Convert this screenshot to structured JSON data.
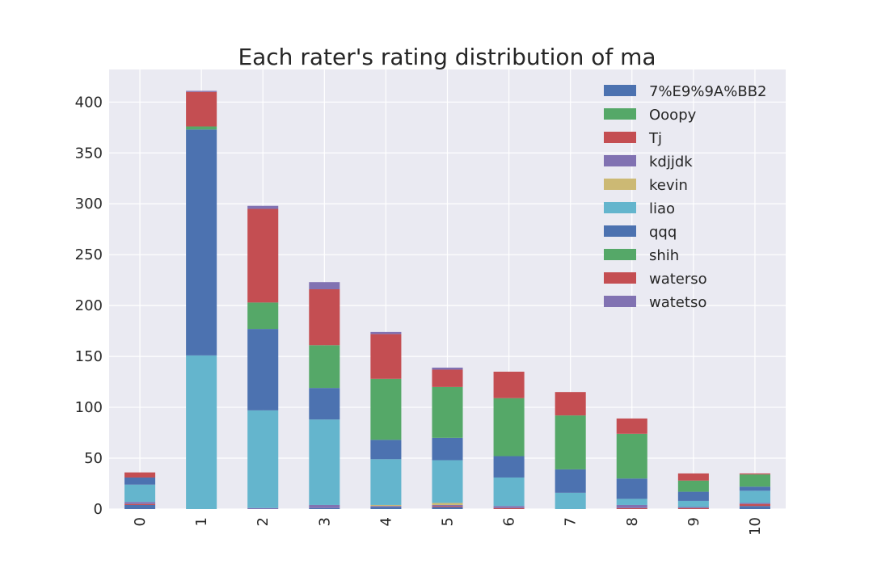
{
  "chart_data": {
    "type": "bar",
    "stacked": true,
    "title": "Each rater's rating distribution of ma",
    "xlabel": "",
    "ylabel": "",
    "categories": [
      "0",
      "1",
      "2",
      "3",
      "4",
      "5",
      "6",
      "7",
      "8",
      "9",
      "10"
    ],
    "ylim": [
      0,
      432
    ],
    "yticks": [
      0,
      50,
      100,
      150,
      200,
      250,
      300,
      350,
      400
    ],
    "grid": true,
    "legend_position": "top-right",
    "series": [
      {
        "name": "7%E9%9A%BB2",
        "color": "#4C72B0",
        "values": [
          4,
          0,
          0,
          1,
          2,
          2,
          0,
          0,
          0,
          0,
          3
        ]
      },
      {
        "name": "Ooopy",
        "color": "#55A868",
        "values": [
          0,
          0,
          0,
          0,
          0,
          0,
          0,
          0,
          0,
          0,
          0
        ]
      },
      {
        "name": "Tj",
        "color": "#C44E52",
        "values": [
          1,
          0,
          0,
          0,
          0,
          1,
          1,
          0,
          1,
          1,
          2
        ]
      },
      {
        "name": "kdjjdk",
        "color": "#8172B2",
        "values": [
          2,
          0,
          1,
          3,
          1,
          1,
          2,
          0,
          3,
          1,
          1
        ]
      },
      {
        "name": "kevin",
        "color": "#CCB974",
        "values": [
          0,
          0,
          0,
          0,
          1,
          2,
          0,
          0,
          0,
          0,
          0
        ]
      },
      {
        "name": "liao",
        "color": "#64B5CD",
        "values": [
          17,
          151,
          96,
          84,
          45,
          42,
          28,
          16,
          6,
          6,
          12
        ]
      },
      {
        "name": "qqq",
        "color": "#4C72B0",
        "values": [
          7,
          222,
          80,
          31,
          19,
          22,
          21,
          23,
          20,
          9,
          4
        ]
      },
      {
        "name": "shih",
        "color": "#55A868",
        "values": [
          0,
          3,
          26,
          42,
          60,
          50,
          57,
          53,
          44,
          11,
          12
        ]
      },
      {
        "name": "waterso",
        "color": "#C44E52",
        "values": [
          5,
          34,
          92,
          55,
          44,
          17,
          26,
          23,
          15,
          7,
          1
        ]
      },
      {
        "name": "watetso",
        "color": "#8172B2",
        "values": [
          0,
          1,
          3,
          7,
          2,
          2,
          0,
          0,
          0,
          0,
          0
        ]
      }
    ]
  }
}
